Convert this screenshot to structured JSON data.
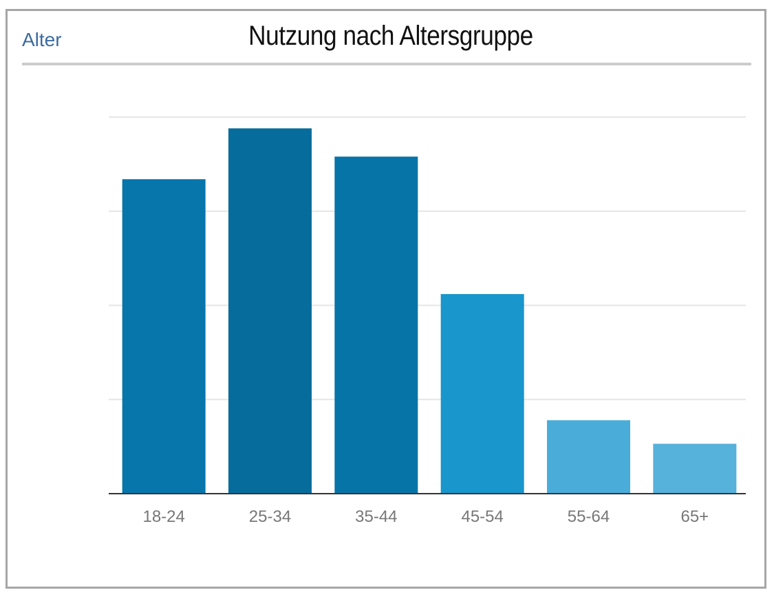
{
  "header": {
    "tab_label": "Alter",
    "title": "Nutzung nach Altersgruppe"
  },
  "chart_data": {
    "type": "bar",
    "title": "Nutzung nach Altersgruppe",
    "xlabel": "",
    "ylabel": "",
    "categories": [
      "18-24",
      "25-34",
      "35-44",
      "45-54",
      "55-64",
      "65+"
    ],
    "values": [
      16.7,
      19.4,
      17.9,
      10.6,
      3.9,
      2.65
    ],
    "ylim": [
      0,
      20
    ],
    "grid": true,
    "legend": "none",
    "colors": [
      "#0776ab",
      "#066c9b",
      "#0774a8",
      "#1996cb",
      "#4aadd9",
      "#56b1db"
    ]
  }
}
